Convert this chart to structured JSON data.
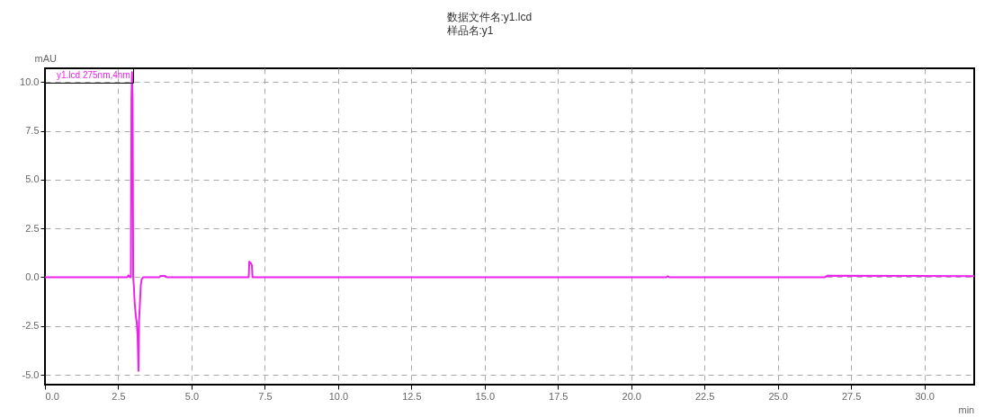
{
  "chart_data": {
    "type": "line",
    "title": "数据文件名:y1.lcd",
    "subtitle": "样品名:y1",
    "xlabel": "min",
    "ylabel": "mAU",
    "x": [
      0,
      2.5,
      2.8,
      2.85,
      2.9,
      2.93,
      2.95,
      2.97,
      2.99,
      3.01,
      3.03,
      3.06,
      3.1,
      3.13,
      3.16,
      3.19,
      3.21,
      3.24,
      3.27,
      3.3,
      3.35,
      3.9,
      3.95,
      4.1,
      4.15,
      6.95,
      6.97,
      7.0,
      7.03,
      7.06,
      7.08,
      21.2,
      21.25,
      21.3,
      26.6,
      26.7,
      31.7
    ],
    "series": [
      {
        "name": "y1.lcd 275nm,4nm",
        "color": "#ee22ee",
        "values": [
          0,
          0,
          0,
          0.1,
          0,
          0,
          9.2,
          10.5,
          9,
          0,
          -0.4,
          -1.3,
          -2,
          -2.3,
          -3,
          -4.8,
          -2.2,
          -1.3,
          -0.4,
          -0.1,
          0,
          0,
          0.07,
          0.07,
          0,
          0,
          0.8,
          0.75,
          0.7,
          0.6,
          0,
          0,
          0.05,
          0,
          0,
          0.08,
          0.06
        ]
      }
    ],
    "xlim": [
      0,
      31.7
    ],
    "ylim": [
      -5.5,
      10.7
    ],
    "xticks": [
      {
        "value": 0,
        "label": "0.0"
      },
      2.5,
      {
        "value": 5,
        "label": "5.0"
      },
      7.5,
      {
        "value": 10,
        "label": "10.0"
      },
      12.5,
      {
        "value": 15,
        "label": "15.0"
      },
      17.5,
      {
        "value": 20,
        "label": "20.0"
      },
      22.5,
      {
        "value": 25,
        "label": "25.0"
      },
      27.5,
      {
        "value": 30,
        "label": "30.0"
      }
    ],
    "yticks": [
      {
        "value": -5,
        "label": "-5.0"
      },
      -2.5,
      {
        "value": 0,
        "label": "0.0"
      },
      2.5,
      {
        "value": 5,
        "label": "5.0"
      },
      7.5,
      {
        "value": 10,
        "label": "10.0"
      }
    ],
    "grid": true,
    "legend": "top left"
  }
}
